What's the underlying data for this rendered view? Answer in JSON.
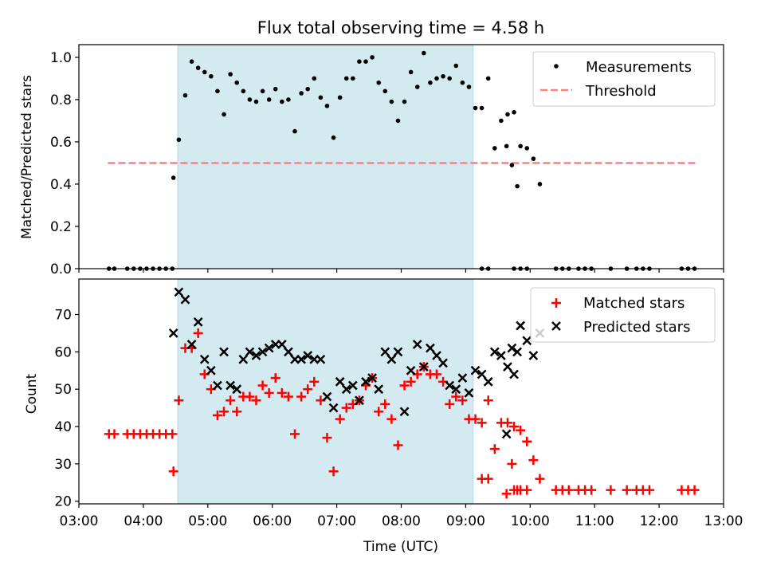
{
  "figure": {
    "title": "Flux total observing time = 4.58 h",
    "xlabel": "Time (UTC)",
    "x_tick_labels": [
      "03:00",
      "04:00",
      "05:00",
      "06:00",
      "07:00",
      "08:00",
      "09:00",
      "10:00",
      "11:00",
      "12:00",
      "13:00"
    ]
  },
  "chart_data": [
    {
      "type": "scatter",
      "title": "Flux total observing time = 4.58 h",
      "ylabel": "Matched/Predicted stars",
      "xlabel": "",
      "xlim": [
        3.0,
        13.0
      ],
      "ylim": [
        0.0,
        1.06
      ],
      "y_ticks": [
        0.0,
        0.2,
        0.4,
        0.6,
        0.8,
        1.0
      ],
      "grid": false,
      "legend": "top-right",
      "observing_window": {
        "start": "04:32",
        "end": "09:07",
        "color": "#d3eaf1"
      },
      "threshold": {
        "name": "Threshold",
        "value": 0.5,
        "x_range": [
          "03:27",
          "12:35"
        ],
        "color": "#ff7f7f"
      },
      "series": [
        {
          "name": "Measurements",
          "color": "#000000",
          "points": [
            [
              "03:28",
              0
            ],
            [
              "03:33",
              0
            ],
            [
              "03:45",
              0
            ],
            [
              "03:51",
              0
            ],
            [
              "03:57",
              0
            ],
            [
              "04:03",
              0
            ],
            [
              "04:09",
              0
            ],
            [
              "04:15",
              0
            ],
            [
              "04:21",
              0
            ],
            [
              "04:27",
              0
            ],
            [
              "04:28",
              0.43
            ],
            [
              "04:33",
              0.61
            ],
            [
              "04:39",
              0.82
            ],
            [
              "04:45",
              0.98
            ],
            [
              "04:51",
              0.95
            ],
            [
              "04:57",
              0.93
            ],
            [
              "05:03",
              0.91
            ],
            [
              "05:09",
              0.84
            ],
            [
              "05:15",
              0.73
            ],
            [
              "05:21",
              0.92
            ],
            [
              "05:27",
              0.88
            ],
            [
              "05:33",
              0.84
            ],
            [
              "05:39",
              0.8
            ],
            [
              "05:45",
              0.79
            ],
            [
              "05:51",
              0.84
            ],
            [
              "05:57",
              0.8
            ],
            [
              "06:03",
              0.85
            ],
            [
              "06:09",
              0.79
            ],
            [
              "06:15",
              0.8
            ],
            [
              "06:21",
              0.65
            ],
            [
              "06:27",
              0.83
            ],
            [
              "06:33",
              0.85
            ],
            [
              "06:39",
              0.9
            ],
            [
              "06:45",
              0.81
            ],
            [
              "06:51",
              0.77
            ],
            [
              "06:57",
              0.62
            ],
            [
              "07:03",
              0.81
            ],
            [
              "07:09",
              0.9
            ],
            [
              "07:15",
              0.9
            ],
            [
              "07:21",
              0.98
            ],
            [
              "07:27",
              0.98
            ],
            [
              "07:33",
              1.0
            ],
            [
              "07:39",
              0.88
            ],
            [
              "07:45",
              0.84
            ],
            [
              "07:51",
              0.79
            ],
            [
              "07:57",
              0.7
            ],
            [
              "08:03",
              0.79
            ],
            [
              "08:09",
              0.93
            ],
            [
              "08:15",
              0.86
            ],
            [
              "08:21",
              1.02
            ],
            [
              "08:27",
              0.88
            ],
            [
              "08:33",
              0.9
            ],
            [
              "08:39",
              0.91
            ],
            [
              "08:45",
              0.9
            ],
            [
              "08:51",
              0.96
            ],
            [
              "08:57",
              0.88
            ],
            [
              "09:03",
              0.86
            ],
            [
              "09:09",
              0.76
            ],
            [
              "09:15",
              0.76
            ],
            [
              "09:21",
              0.9
            ],
            [
              "09:27",
              0.57
            ],
            [
              "09:33",
              0.7
            ],
            [
              "09:39",
              0.73
            ],
            [
              "09:45",
              0.74
            ],
            [
              "09:51",
              0.58
            ],
            [
              "09:57",
              0.57
            ],
            [
              "10:03",
              0.52
            ],
            [
              "10:09",
              0.4
            ],
            [
              "09:15",
              0
            ],
            [
              "09:21",
              0
            ],
            [
              "09:38",
              0.58
            ],
            [
              "09:43",
              0.49
            ],
            [
              "09:48",
              0.39
            ],
            [
              "09:45",
              0
            ],
            [
              "09:51",
              0
            ],
            [
              "09:57",
              0
            ],
            [
              "10:24",
              0
            ],
            [
              "10:30",
              0
            ],
            [
              "10:36",
              0
            ],
            [
              "10:45",
              0
            ],
            [
              "10:51",
              0
            ],
            [
              "10:57",
              0
            ],
            [
              "11:15",
              0
            ],
            [
              "11:30",
              0
            ],
            [
              "11:39",
              0
            ],
            [
              "11:45",
              0
            ],
            [
              "11:51",
              0
            ],
            [
              "12:21",
              0
            ],
            [
              "12:27",
              0
            ],
            [
              "12:33",
              0
            ]
          ]
        }
      ]
    },
    {
      "type": "scatter",
      "title": "",
      "ylabel": "Count",
      "xlabel": "Time (UTC)",
      "xlim": [
        3.0,
        13.0
      ],
      "ylim": [
        19.3,
        79.5
      ],
      "y_ticks": [
        20,
        30,
        40,
        50,
        60,
        70
      ],
      "grid": false,
      "legend": "top-right",
      "observing_window": {
        "start": "04:32",
        "end": "09:07",
        "color": "#d3eaf1"
      },
      "series": [
        {
          "name": "Matched stars",
          "color": "#ff0000",
          "marker": "plus",
          "points": [
            [
              "03:28",
              38
            ],
            [
              "03:33",
              38
            ],
            [
              "03:45",
              38
            ],
            [
              "03:51",
              38
            ],
            [
              "03:57",
              38
            ],
            [
              "04:03",
              38
            ],
            [
              "04:09",
              38
            ],
            [
              "04:15",
              38
            ],
            [
              "04:21",
              38
            ],
            [
              "04:27",
              38
            ],
            [
              "04:28",
              28
            ],
            [
              "04:33",
              47
            ],
            [
              "04:39",
              61
            ],
            [
              "04:45",
              61
            ],
            [
              "04:51",
              65
            ],
            [
              "04:57",
              54
            ],
            [
              "05:03",
              50
            ],
            [
              "05:09",
              43
            ],
            [
              "05:15",
              44
            ],
            [
              "05:21",
              47
            ],
            [
              "05:27",
              44
            ],
            [
              "05:33",
              48
            ],
            [
              "05:39",
              48
            ],
            [
              "05:45",
              47
            ],
            [
              "05:51",
              51
            ],
            [
              "05:57",
              49
            ],
            [
              "06:03",
              53
            ],
            [
              "06:09",
              49
            ],
            [
              "06:15",
              48
            ],
            [
              "06:21",
              38
            ],
            [
              "06:27",
              48
            ],
            [
              "06:33",
              50
            ],
            [
              "06:39",
              52
            ],
            [
              "06:45",
              47
            ],
            [
              "06:51",
              37
            ],
            [
              "06:57",
              28
            ],
            [
              "07:03",
              42
            ],
            [
              "07:09",
              45
            ],
            [
              "07:15",
              46
            ],
            [
              "07:21",
              47
            ],
            [
              "07:27",
              51
            ],
            [
              "07:33",
              53
            ],
            [
              "07:39",
              44
            ],
            [
              "07:45",
              46
            ],
            [
              "07:51",
              42
            ],
            [
              "07:57",
              35
            ],
            [
              "08:03",
              51
            ],
            [
              "08:09",
              52
            ],
            [
              "08:15",
              54
            ],
            [
              "08:21",
              56
            ],
            [
              "08:27",
              54
            ],
            [
              "08:33",
              54
            ],
            [
              "08:39",
              52
            ],
            [
              "08:45",
              46
            ],
            [
              "08:51",
              48
            ],
            [
              "08:57",
              47
            ],
            [
              "09:03",
              42
            ],
            [
              "09:09",
              42
            ],
            [
              "09:15",
              41
            ],
            [
              "09:21",
              47
            ],
            [
              "09:27",
              34
            ],
            [
              "09:33",
              41
            ],
            [
              "09:39",
              41
            ],
            [
              "09:45",
              40
            ],
            [
              "09:51",
              39
            ],
            [
              "09:57",
              36
            ],
            [
              "10:03",
              31
            ],
            [
              "10:09",
              26
            ],
            [
              "09:15",
              26
            ],
            [
              "09:21",
              26
            ],
            [
              "09:38",
              22
            ],
            [
              "09:43",
              30
            ],
            [
              "09:48",
              23
            ],
            [
              "09:45",
              23
            ],
            [
              "09:51",
              23
            ],
            [
              "09:57",
              23
            ],
            [
              "10:24",
              23
            ],
            [
              "10:30",
              23
            ],
            [
              "10:36",
              23
            ],
            [
              "10:45",
              23
            ],
            [
              "10:51",
              23
            ],
            [
              "10:57",
              23
            ],
            [
              "11:15",
              23
            ],
            [
              "11:30",
              23
            ],
            [
              "11:39",
              23
            ],
            [
              "11:45",
              23
            ],
            [
              "11:51",
              23
            ],
            [
              "12:21",
              23
            ],
            [
              "12:27",
              23
            ],
            [
              "12:33",
              23
            ]
          ]
        },
        {
          "name": "Predicted stars",
          "color": "#000000",
          "marker": "x",
          "points": [
            [
              "04:28",
              65
            ],
            [
              "04:33",
              76
            ],
            [
              "04:39",
              74
            ],
            [
              "04:45",
              62
            ],
            [
              "04:51",
              68
            ],
            [
              "04:57",
              58
            ],
            [
              "05:03",
              55
            ],
            [
              "05:09",
              51
            ],
            [
              "05:15",
              60
            ],
            [
              "05:21",
              51
            ],
            [
              "05:27",
              50
            ],
            [
              "05:33",
              58
            ],
            [
              "05:39",
              60
            ],
            [
              "05:45",
              59
            ],
            [
              "05:51",
              60
            ],
            [
              "05:57",
              61
            ],
            [
              "06:03",
              62
            ],
            [
              "06:09",
              62
            ],
            [
              "06:15",
              60
            ],
            [
              "06:21",
              58
            ],
            [
              "06:27",
              58
            ],
            [
              "06:33",
              59
            ],
            [
              "06:39",
              58
            ],
            [
              "06:45",
              58
            ],
            [
              "06:51",
              48
            ],
            [
              "06:57",
              45
            ],
            [
              "07:03",
              52
            ],
            [
              "07:09",
              50
            ],
            [
              "07:15",
              51
            ],
            [
              "07:21",
              47
            ],
            [
              "07:27",
              52
            ],
            [
              "07:33",
              53
            ],
            [
              "07:39",
              50
            ],
            [
              "07:45",
              60
            ],
            [
              "07:51",
              58
            ],
            [
              "07:57",
              60
            ],
            [
              "08:03",
              44
            ],
            [
              "08:09",
              55
            ],
            [
              "08:15",
              62
            ],
            [
              "08:21",
              56
            ],
            [
              "08:27",
              61
            ],
            [
              "08:33",
              59
            ],
            [
              "08:39",
              57
            ],
            [
              "08:45",
              51
            ],
            [
              "08:51",
              50
            ],
            [
              "08:57",
              53
            ],
            [
              "09:03",
              49
            ],
            [
              "09:09",
              55
            ],
            [
              "09:15",
              54
            ],
            [
              "09:21",
              52
            ],
            [
              "09:27",
              60
            ],
            [
              "09:33",
              59
            ],
            [
              "09:39",
              56
            ],
            [
              "09:45",
              54
            ],
            [
              "09:51",
              67
            ],
            [
              "09:57",
              63
            ],
            [
              "10:03",
              59
            ],
            [
              "10:09",
              65
            ],
            [
              "09:38",
              38
            ],
            [
              "09:43",
              61
            ],
            [
              "09:48",
              60
            ]
          ]
        }
      ]
    }
  ]
}
